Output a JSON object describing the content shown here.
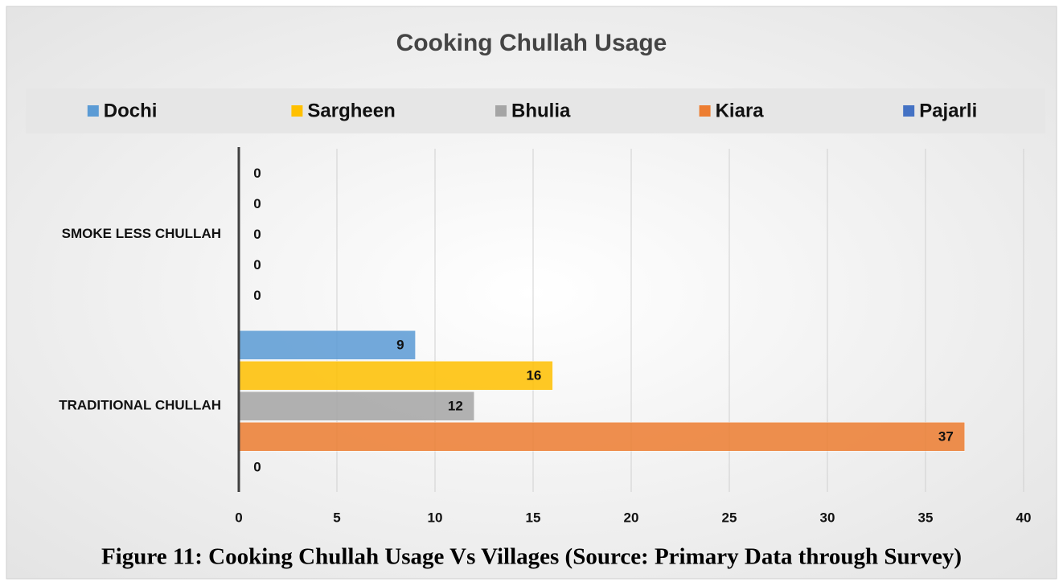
{
  "chart_data": {
    "type": "bar",
    "orientation": "horizontal",
    "title": "Cooking Chullah Usage",
    "caption": "Figure 11:  Cooking Chullah Usage Vs Villages (Source: Primary Data through Survey)",
    "categories": [
      "SMOKE LESS CHULLAH",
      "TRADITIONAL CHULLAH"
    ],
    "series": [
      {
        "name": "Dochi",
        "color": "#5b9bd5",
        "values": [
          0,
          9
        ]
      },
      {
        "name": "Sargheen",
        "color": "#ffc000",
        "values": [
          0,
          16
        ]
      },
      {
        "name": "Bhulia",
        "color": "#a5a5a5",
        "values": [
          0,
          12
        ]
      },
      {
        "name": "Kiara",
        "color": "#ed7d31",
        "values": [
          0,
          37
        ]
      },
      {
        "name": "Pajarli",
        "color": "#4472c4",
        "values": [
          0,
          0
        ]
      }
    ],
    "xlim": [
      0,
      40
    ],
    "xticks": [
      0,
      5,
      10,
      15,
      20,
      25,
      30,
      35,
      40
    ],
    "grid": true,
    "legend": "top",
    "data_labels": true
  }
}
